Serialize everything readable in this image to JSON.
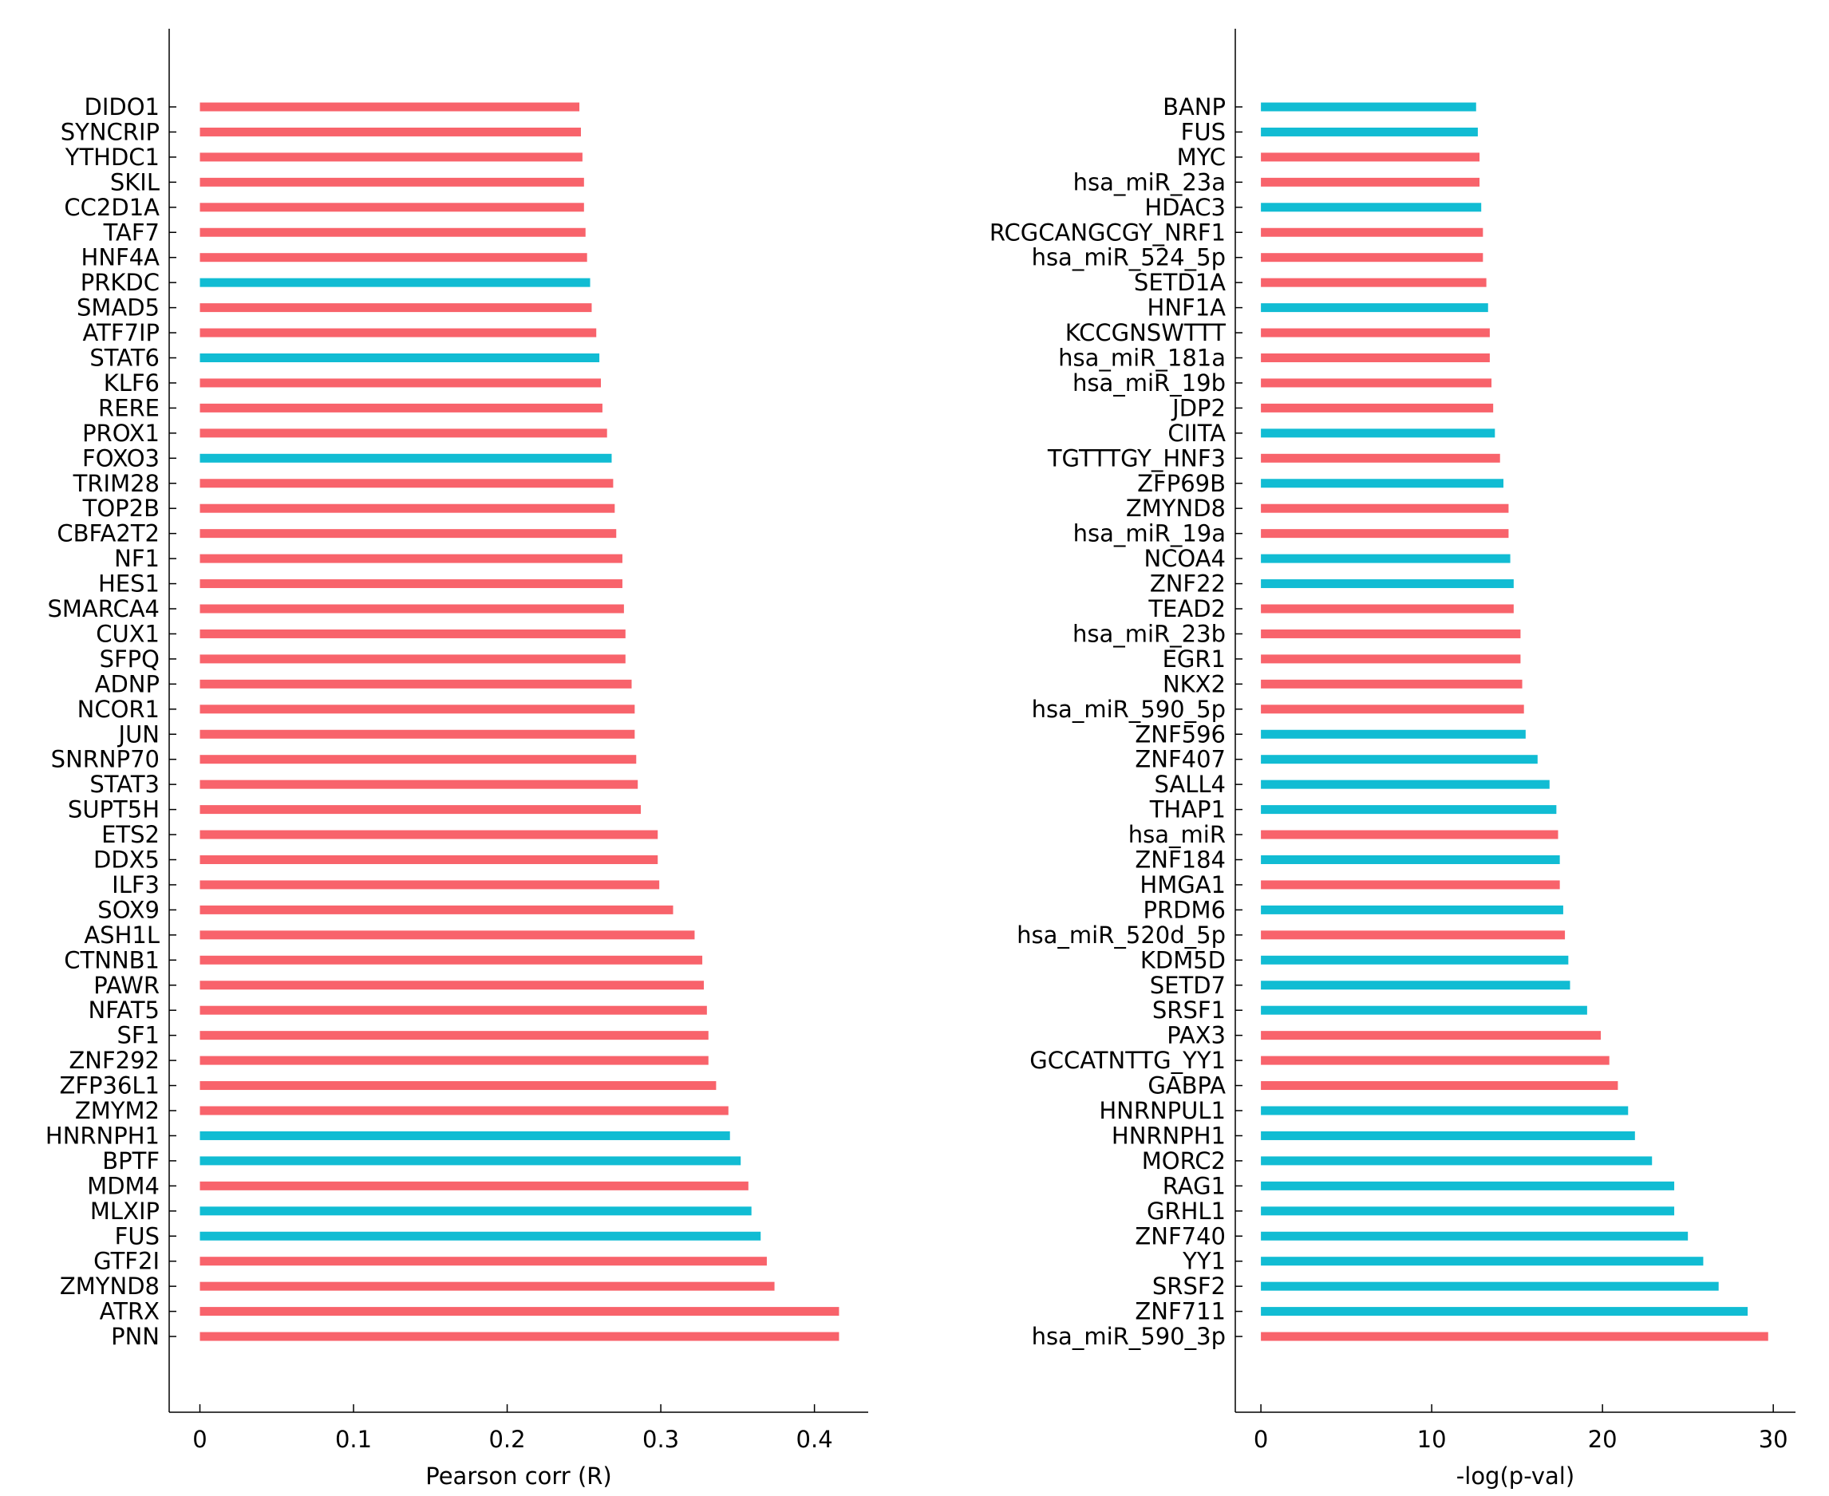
{
  "colors": {
    "red": "#f8636b",
    "blue": "#11bcd3"
  },
  "chart_data": [
    {
      "type": "bar",
      "orientation": "horizontal",
      "xlabel": "Pearson corr (R)",
      "xlim": [
        -0.02,
        0.435
      ],
      "xticks": [
        0,
        0.1,
        0.2,
        0.3,
        0.4
      ],
      "xtick_labels": [
        "0",
        "0.1",
        "0.2",
        "0.3",
        "0.4"
      ],
      "categories": [
        "DIDO1",
        "SYNCRIP",
        "YTHDC1",
        "SKIL",
        "CC2D1A",
        "TAF7",
        "HNF4A",
        "PRKDC",
        "SMAD5",
        "ATF7IP",
        "STAT6",
        "KLF6",
        "RERE",
        "PROX1",
        "FOXO3",
        "TRIM28",
        "TOP2B",
        "CBFA2T2",
        "NF1",
        "HES1",
        "SMARCA4",
        "CUX1",
        "SFPQ",
        "ADNP",
        "NCOR1",
        "JUN",
        "SNRNP70",
        "STAT3",
        "SUPT5H",
        "ETS2",
        "DDX5",
        "ILF3",
        "SOX9",
        "ASH1L",
        "CTNNB1",
        "PAWR",
        "NFAT5",
        "SF1",
        "ZNF292",
        "ZFP36L1",
        "ZMYM2",
        "HNRNPH1",
        "BPTF",
        "MDM4",
        "MLXIP",
        "FUS",
        "GTF2I",
        "ZMYND8",
        "ATRX",
        "PNN"
      ],
      "values": [
        0.247,
        0.248,
        0.249,
        0.25,
        0.25,
        0.251,
        0.252,
        0.254,
        0.255,
        0.258,
        0.26,
        0.261,
        0.262,
        0.265,
        0.268,
        0.269,
        0.27,
        0.271,
        0.275,
        0.275,
        0.276,
        0.277,
        0.277,
        0.281,
        0.283,
        0.283,
        0.284,
        0.285,
        0.287,
        0.298,
        0.298,
        0.299,
        0.308,
        0.322,
        0.327,
        0.328,
        0.33,
        0.331,
        0.331,
        0.336,
        0.344,
        0.345,
        0.352,
        0.357,
        0.359,
        0.365,
        0.369,
        0.374,
        0.416,
        0.416
      ],
      "series_color": [
        "red",
        "red",
        "red",
        "red",
        "red",
        "red",
        "red",
        "blue",
        "red",
        "red",
        "blue",
        "red",
        "red",
        "red",
        "blue",
        "red",
        "red",
        "red",
        "red",
        "red",
        "red",
        "red",
        "red",
        "red",
        "red",
        "red",
        "red",
        "red",
        "red",
        "red",
        "red",
        "red",
        "red",
        "red",
        "red",
        "red",
        "red",
        "red",
        "red",
        "red",
        "red",
        "blue",
        "blue",
        "red",
        "blue",
        "blue",
        "red",
        "red",
        "red",
        "red"
      ]
    },
    {
      "type": "bar",
      "orientation": "horizontal",
      "xlabel": "-log(p-val)",
      "xlim": [
        -1.5,
        31.3
      ],
      "xticks": [
        0,
        10,
        20,
        30
      ],
      "xtick_labels": [
        "0",
        "10",
        "20",
        "30"
      ],
      "categories": [
        "BANP",
        "FUS",
        "MYC",
        "hsa_miR_23a",
        "HDAC3",
        "RCGCANGCGY_NRF1",
        "hsa_miR_524_5p",
        "SETD1A",
        "HNF1A",
        "KCCGNSWTTT",
        "hsa_miR_181a",
        "hsa_miR_19b",
        "JDP2",
        "CIITA",
        "TGTTTGY_HNF3",
        "ZFP69B",
        "ZMYND8",
        "hsa_miR_19a",
        "NCOA4",
        "ZNF22",
        "TEAD2",
        "hsa_miR_23b",
        "EGR1",
        "NKX2",
        "hsa_miR_590_5p",
        "ZNF596",
        "ZNF407",
        "SALL4",
        "THAP1",
        "hsa_miR",
        "ZNF184",
        "HMGA1",
        "PRDM6",
        "hsa_miR_520d_5p",
        "KDM5D",
        "SETD7",
        "SRSF1",
        "PAX3",
        "GCCATNTTG_YY1",
        "GABPA",
        "HNRNPUL1",
        "HNRNPH1",
        "MORC2",
        "RAG1",
        "GRHL1",
        "ZNF740",
        "YY1",
        "SRSF2",
        "ZNF711",
        "hsa_miR_590_3p"
      ],
      "values": [
        12.6,
        12.7,
        12.8,
        12.8,
        12.9,
        13.0,
        13.0,
        13.2,
        13.3,
        13.4,
        13.4,
        13.5,
        13.6,
        13.7,
        14.0,
        14.2,
        14.5,
        14.5,
        14.6,
        14.8,
        14.8,
        15.2,
        15.2,
        15.3,
        15.4,
        15.5,
        16.2,
        16.9,
        17.3,
        17.4,
        17.5,
        17.5,
        17.7,
        17.8,
        18.0,
        18.1,
        19.1,
        19.9,
        20.4,
        20.9,
        21.5,
        21.9,
        22.9,
        24.2,
        24.2,
        25.0,
        25.9,
        26.8,
        28.5,
        29.7
      ],
      "series_color": [
        "blue",
        "blue",
        "red",
        "red",
        "blue",
        "red",
        "red",
        "red",
        "blue",
        "red",
        "red",
        "red",
        "red",
        "blue",
        "red",
        "blue",
        "red",
        "red",
        "blue",
        "blue",
        "red",
        "red",
        "red",
        "red",
        "red",
        "blue",
        "blue",
        "blue",
        "blue",
        "red",
        "blue",
        "red",
        "blue",
        "red",
        "blue",
        "blue",
        "blue",
        "red",
        "red",
        "red",
        "blue",
        "blue",
        "blue",
        "blue",
        "blue",
        "blue",
        "blue",
        "blue",
        "blue",
        "red"
      ]
    }
  ]
}
